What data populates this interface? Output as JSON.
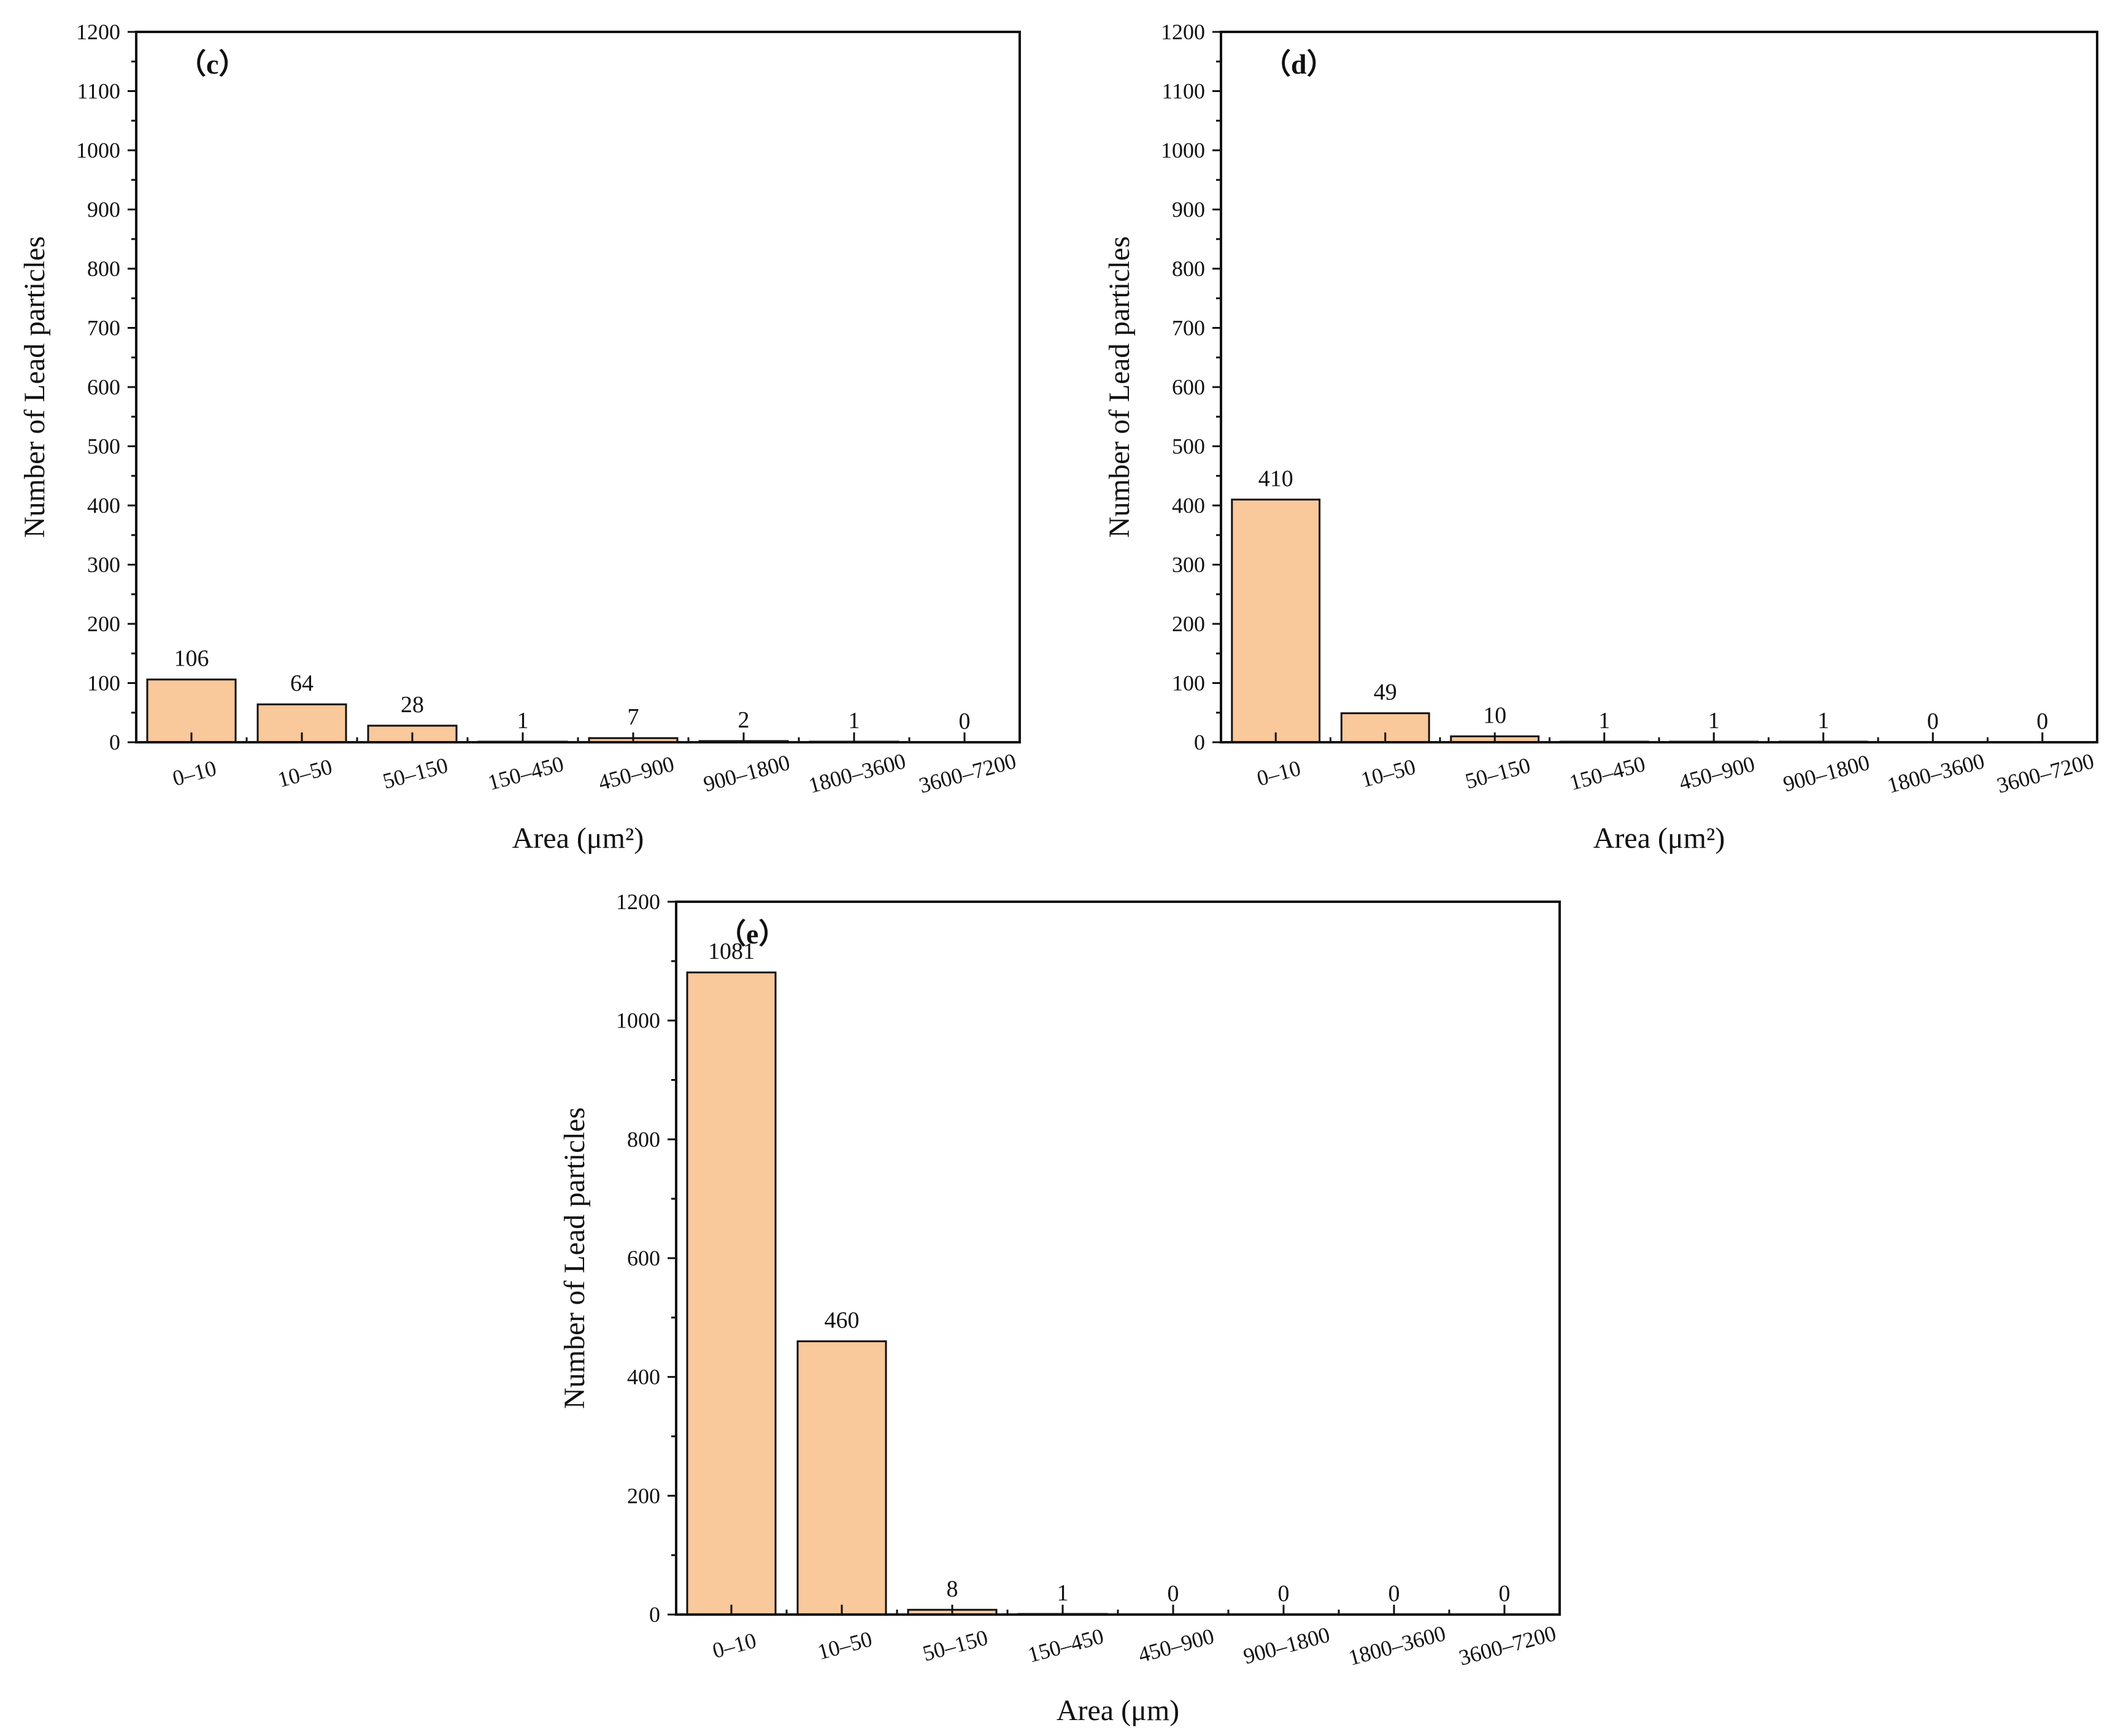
{
  "colors": {
    "bar_fill": "#F9C89B",
    "bar_stroke": "#111111",
    "axis": "#111111",
    "background": "#FFFFFF"
  },
  "chart_data": [
    {
      "id": "c",
      "type": "bar",
      "panel_label": "（c）",
      "title": "",
      "xlabel": "Area (μm²)",
      "ylabel": "Number of Lead particles",
      "ylim": [
        0,
        1200
      ],
      "yticks": [
        0,
        100,
        200,
        300,
        400,
        500,
        600,
        700,
        800,
        900,
        1000,
        1100,
        1200
      ],
      "categories": [
        "0–10",
        "10–50",
        "50–150",
        "150–450",
        "450–900",
        "900–1800",
        "1800–3600",
        "3600–7200"
      ],
      "values": [
        106,
        64,
        28,
        1,
        7,
        2,
        1,
        0
      ],
      "data_labels": [
        "106",
        "64",
        "28",
        "1",
        "7",
        "2",
        "1",
        "0"
      ],
      "grid": false
    },
    {
      "id": "d",
      "type": "bar",
      "panel_label": "（d）",
      "title": "",
      "xlabel": "Area (μm²)",
      "ylabel": "Number of Lead particles",
      "ylim": [
        0,
        1200
      ],
      "yticks": [
        0,
        100,
        200,
        300,
        400,
        500,
        600,
        700,
        800,
        900,
        1000,
        1100,
        1200
      ],
      "categories": [
        "0–10",
        "10–50",
        "50–150",
        "150–450",
        "450–900",
        "900–1800",
        "1800–3600",
        "3600–7200"
      ],
      "values": [
        410,
        49,
        10,
        1,
        1,
        1,
        0,
        0
      ],
      "data_labels": [
        "410",
        "49",
        "10",
        "1",
        "1",
        "1",
        "0",
        "0"
      ],
      "grid": false
    },
    {
      "id": "e",
      "type": "bar",
      "panel_label": "（e）",
      "title": "",
      "xlabel": "Area (μm)",
      "ylabel": "Number of Lead particles",
      "ylim": [
        0,
        1200
      ],
      "yticks": [
        0,
        200,
        400,
        600,
        800,
        1000,
        1200
      ],
      "categories": [
        "0–10",
        "10–50",
        "50–150",
        "150–450",
        "450–900",
        "900–1800",
        "1800–3600",
        "3600–7200"
      ],
      "values": [
        1081,
        460,
        8,
        1,
        0,
        0,
        0,
        0
      ],
      "data_labels": [
        "1081",
        "460",
        "8",
        "1",
        "0",
        "0",
        "0",
        "0"
      ],
      "grid": false
    }
  ]
}
